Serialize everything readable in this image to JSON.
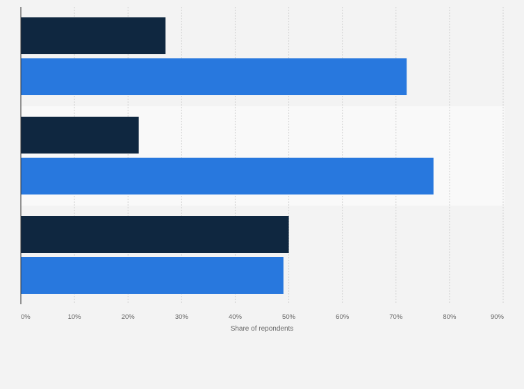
{
  "chart_data": {
    "type": "bar",
    "orientation": "horizontal",
    "categories": [
      "",
      "",
      ""
    ],
    "series": [
      {
        "values": [
          27,
          22,
          50
        ],
        "color": "#0f2740"
      },
      {
        "values": [
          72,
          77,
          49
        ],
        "color": "#2878de"
      }
    ],
    "xlabel": "Share of repondents",
    "xlim": [
      0,
      90
    ],
    "x_ticks": [
      "0%",
      "10%",
      "20%",
      "30%",
      "40%",
      "50%",
      "60%",
      "70%",
      "80%",
      "90%"
    ],
    "grid": "vertical dashed",
    "legend": "none",
    "colors": {
      "background": "#f3f3f3",
      "band_alt": "#f9f9f9",
      "grid": "#d2d2d2",
      "axis": "#333333"
    }
  }
}
